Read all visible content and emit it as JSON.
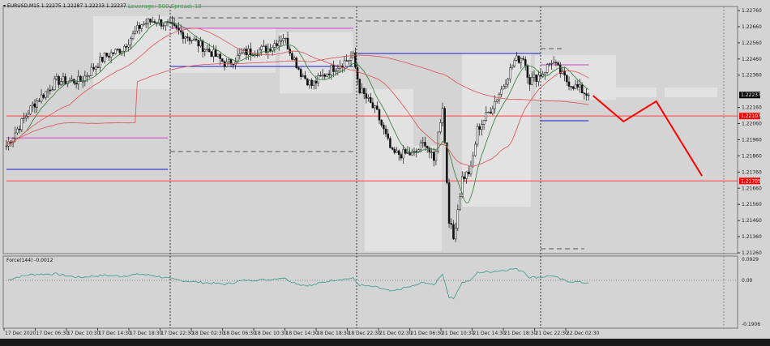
{
  "header": {
    "symbol": "EURUSD,M15",
    "ohlc": "1.22275 1.22287 1.22233 1.22237",
    "leverage": "Leverage: 500 Spread: 18"
  },
  "indicator": {
    "label": "Force(144) -0.0012",
    "max_label": "0.0929",
    "zero_label": "0.00",
    "min_label": "-0.1906"
  },
  "price_axis": {
    "labels": [
      "1.22760",
      "1.22660",
      "1.22560",
      "1.22460",
      "1.22360",
      "1.22160",
      "1.22060",
      "1.21960",
      "1.21860",
      "1.21760",
      "1.21660",
      "1.21560",
      "1.21460",
      "1.21360",
      "1.21260"
    ],
    "current": "1.22237",
    "level1": "1.22107",
    "level2": "1.21705"
  },
  "time_axis": [
    "17 Dec 2020",
    "17 Dec 06:30",
    "17 Dec 10:30",
    "17 Dec 14:30",
    "17 Dec 18:30",
    "17 Dec 22:30",
    "18 Dec 02:30",
    "18 Dec 06:30",
    "18 Dec 10:30",
    "18 Dec 14:30",
    "18 Dec 18:30",
    "18 Dec 22:30",
    "21 Dec 02:30",
    "21 Dec 06:30",
    "21 Dec 10:30",
    "21 Dec 14:30",
    "21 Dec 18:30",
    "21 Dec 22:30",
    "22 Dec 02:30"
  ],
  "colors": {
    "bg": "#d4d4d4",
    "candle": "#111111",
    "ma_fast": "#2e7d32",
    "ma_slow": "#e05050",
    "level": "#ff4040",
    "blue": "#1a1acc",
    "magenta": "#d040d0",
    "forecast": "#ff0000"
  },
  "price_path": [
    [
      0,
      1.21922
    ],
    [
      12,
      1.22173
    ],
    [
      23,
      1.22324
    ],
    [
      34,
      1.22324
    ],
    [
      45,
      1.22474
    ],
    [
      53,
      1.22524
    ],
    [
      62,
      1.22675
    ],
    [
      68,
      1.227
    ],
    [
      73,
      1.22675
    ],
    [
      83,
      1.226
    ],
    [
      94,
      1.22499
    ],
    [
      101,
      1.22424
    ],
    [
      109,
      1.22499
    ],
    [
      120,
      1.22524
    ],
    [
      127,
      1.226
    ],
    [
      135,
      1.22374
    ],
    [
      140,
      1.22298
    ],
    [
      149,
      1.22399
    ],
    [
      159,
      1.22474
    ],
    [
      162,
      1.22273
    ],
    [
      170,
      1.22123
    ],
    [
      177,
      1.21872
    ],
    [
      187,
      1.21872
    ],
    [
      192,
      1.21947
    ],
    [
      196,
      1.21822
    ],
    [
      200,
      1.22173
    ],
    [
      203,
      1.21471
    ],
    [
      205,
      1.21345
    ],
    [
      209,
      1.21722
    ],
    [
      213,
      1.21772
    ],
    [
      216,
      1.22022
    ],
    [
      222,
      1.22148
    ],
    [
      227,
      1.22273
    ],
    [
      233,
      1.22449
    ],
    [
      237,
      1.22474
    ],
    [
      240,
      1.22324
    ],
    [
      246,
      1.22374
    ],
    [
      250,
      1.22449
    ],
    [
      257,
      1.22324
    ],
    [
      267,
      1.22237
    ]
  ],
  "levels": [
    {
      "price": 1.22107,
      "color": "#ff4040",
      "from": 0,
      "to": 335,
      "style": "solid"
    },
    {
      "price": 1.21705,
      "color": "#ff4040",
      "from": 0,
      "to": 335,
      "style": "solid"
    },
    {
      "price": 1.2265,
      "color": "#d040d0",
      "from": 75,
      "to": 159,
      "style": "solid"
    },
    {
      "price": 1.22414,
      "color": "#1a1acc",
      "from": 75,
      "to": 159,
      "style": "solid"
    },
    {
      "price": 1.22715,
      "color": "#555555",
      "from": 75,
      "to": 159,
      "style": "dash"
    },
    {
      "price": 1.21887,
      "color": "#555555",
      "from": 75,
      "to": 159,
      "style": "dash"
    },
    {
      "price": 1.22695,
      "color": "#555555",
      "from": 161,
      "to": 245,
      "style": "dash"
    },
    {
      "price": 1.22494,
      "color": "#1a1acc",
      "from": 161,
      "to": 245,
      "style": "solid"
    },
    {
      "price": 1.21777,
      "color": "#1a1acc",
      "from": 0,
      "to": 74,
      "style": "solid"
    },
    {
      "price": 1.21972,
      "color": "#d040d0",
      "from": 0,
      "to": 74,
      "style": "solid"
    },
    {
      "price": 1.22078,
      "color": "#1a1acc",
      "from": 245,
      "to": 267,
      "style": "solid"
    },
    {
      "price": 1.22424,
      "color": "#d040d0",
      "from": 245,
      "to": 267,
      "style": "solid"
    },
    {
      "price": 1.21285,
      "color": "#555555",
      "from": 245,
      "to": 265,
      "style": "dash"
    },
    {
      "price": 1.22524,
      "color": "#555555",
      "from": 245,
      "to": 255,
      "style": "dash"
    }
  ],
  "forecast": [
    [
      269,
      1.22233
    ],
    [
      283,
      1.22073
    ],
    [
      298,
      1.22198
    ],
    [
      319,
      1.21736
    ]
  ]
}
